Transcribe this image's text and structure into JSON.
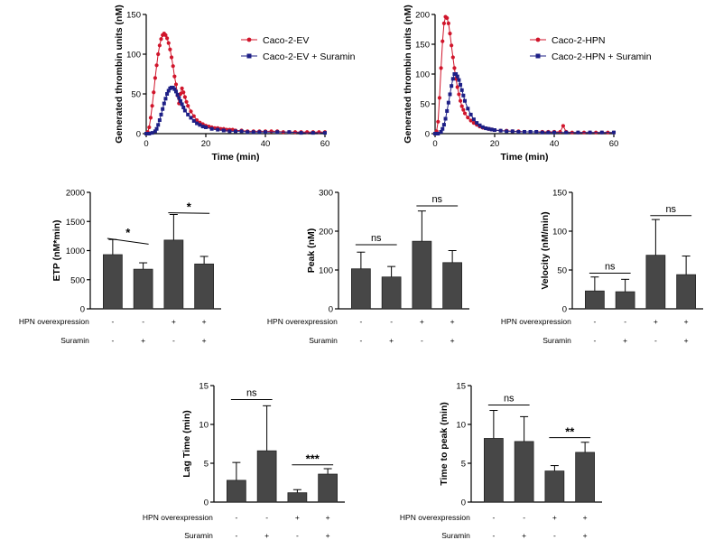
{
  "colors": {
    "red": "#d0152b",
    "navy": "#1d1f86",
    "bar": "#474747",
    "axis": "#000000"
  },
  "chart_data": [
    {
      "type": "line",
      "id": "tg1",
      "ylabel": "Generated thrombin units (nM)",
      "xlabel": "Time (min)",
      "xlim": [
        0,
        60
      ],
      "ylim": [
        0,
        150
      ],
      "xticks": [
        0,
        20,
        40,
        60
      ],
      "yticks": [
        0,
        50,
        100,
        150
      ],
      "legend_position": "top-right",
      "series": [
        {
          "name": "Caco-2-EV",
          "color": "#d0152b",
          "marker": "circle",
          "x": [
            0,
            0.5,
            1,
            1.5,
            2,
            2.5,
            3,
            3.5,
            4,
            4.5,
            5,
            5.5,
            6,
            6.5,
            7,
            7.5,
            8,
            8.5,
            9,
            9.5,
            10,
            10.5,
            11,
            11.5,
            12,
            12.5,
            13,
            13.5,
            14,
            15,
            16,
            17,
            18,
            19,
            20,
            21,
            22,
            23,
            24,
            25,
            26,
            27,
            28,
            29,
            30,
            32,
            34,
            36,
            38,
            40,
            42,
            44,
            46,
            48,
            50,
            52,
            54,
            56,
            58,
            60
          ],
          "y": [
            0,
            2,
            8,
            20,
            35,
            52,
            70,
            86,
            100,
            111,
            119,
            124,
            126,
            124,
            120,
            114,
            106,
            96,
            85,
            72,
            62,
            48,
            38,
            50,
            57,
            52,
            46,
            40,
            35,
            28,
            22,
            17,
            14,
            12,
            10,
            9,
            8,
            7,
            7,
            6,
            6,
            5,
            5,
            5,
            4,
            4,
            3,
            3,
            3,
            3,
            3,
            3,
            2,
            2,
            2,
            2,
            2,
            2,
            2,
            2
          ]
        },
        {
          "name": "Caco-2-EV + Suramin",
          "color": "#1d1f86",
          "marker": "square",
          "x": [
            0,
            1,
            2,
            3,
            3.5,
            4,
            4.5,
            5,
            5.5,
            6,
            6.5,
            7,
            7.5,
            8,
            8.5,
            9,
            9.5,
            10,
            10.5,
            11,
            11.5,
            12,
            12.5,
            13,
            14,
            15,
            16,
            17,
            18,
            19,
            20,
            22,
            24,
            26,
            28,
            30,
            32,
            34,
            36,
            38,
            40,
            44,
            48,
            52,
            56,
            60
          ],
          "y": [
            0,
            0,
            1,
            3,
            6,
            11,
            17,
            24,
            31,
            38,
            44,
            50,
            54,
            57,
            58,
            58,
            56,
            53,
            49,
            45,
            41,
            37,
            33,
            29,
            24,
            20,
            16,
            13,
            11,
            9,
            8,
            6,
            5,
            4,
            3,
            3,
            3,
            2,
            2,
            2,
            2,
            2,
            2,
            1,
            1,
            1
          ]
        }
      ]
    },
    {
      "type": "line",
      "id": "tg2",
      "ylabel": "Generated thrombin units (nM)",
      "xlabel": "Time (min)",
      "xlim": [
        0,
        60
      ],
      "ylim": [
        0,
        200
      ],
      "xticks": [
        0,
        20,
        40,
        60
      ],
      "yticks": [
        0,
        50,
        100,
        150,
        200
      ],
      "legend_position": "top-right",
      "series": [
        {
          "name": "Caco-2-HPN",
          "color": "#d0152b",
          "marker": "circle",
          "x": [
            0,
            0.5,
            1,
            1.5,
            2,
            2.5,
            3,
            3.5,
            4,
            4.5,
            5,
            5.5,
            6,
            6.5,
            7,
            7.5,
            8,
            8.5,
            9,
            9.5,
            10,
            11,
            12,
            13,
            14,
            15,
            16,
            17,
            18,
            19,
            20,
            22,
            24,
            26,
            28,
            30,
            32,
            34,
            36,
            38,
            40,
            42,
            43,
            44,
            46,
            48,
            50,
            52,
            54,
            56,
            58,
            60
          ],
          "y": [
            0,
            4,
            20,
            60,
            110,
            155,
            185,
            196,
            194,
            185,
            168,
            148,
            128,
            110,
            92,
            78,
            66,
            55,
            46,
            40,
            34,
            27,
            22,
            18,
            15,
            12,
            10,
            9,
            8,
            7,
            6,
            5,
            5,
            4,
            4,
            3,
            3,
            3,
            3,
            3,
            3,
            3,
            13,
            3,
            2,
            2,
            2,
            2,
            2,
            2,
            2,
            2
          ]
        },
        {
          "name": "Caco-2-HPN + Suramin",
          "color": "#1d1f86",
          "marker": "square",
          "x": [
            0,
            1,
            2,
            2.5,
            3,
            3.5,
            4,
            4.5,
            5,
            5.5,
            6,
            6.5,
            7,
            7.5,
            8,
            8.5,
            9,
            9.5,
            10,
            11,
            12,
            13,
            14,
            15,
            16,
            17,
            18,
            19,
            20,
            22,
            24,
            26,
            28,
            30,
            32,
            34,
            36,
            38,
            40,
            44,
            48,
            52,
            56,
            60
          ],
          "y": [
            0,
            0,
            3,
            8,
            15,
            25,
            38,
            52,
            66,
            80,
            92,
            100,
            100,
            96,
            90,
            82,
            73,
            64,
            55,
            42,
            32,
            24,
            18,
            14,
            11,
            9,
            8,
            7,
            6,
            5,
            4,
            4,
            3,
            3,
            3,
            3,
            2,
            2,
            2,
            2,
            2,
            2,
            2,
            2
          ]
        }
      ]
    },
    {
      "type": "bar",
      "id": "etp",
      "ylabel": "ETP (nM*min)",
      "ylim": [
        0,
        2000
      ],
      "yticks": [
        0,
        500,
        1000,
        1500,
        2000
      ],
      "values": [
        930,
        680,
        1180,
        770
      ],
      "errors": [
        260,
        110,
        440,
        130
      ],
      "significance": [
        {
          "bars": [
            0,
            1
          ],
          "label": "*"
        },
        {
          "bars": [
            2,
            3
          ],
          "label": "*"
        }
      ]
    },
    {
      "type": "bar",
      "id": "peak",
      "ylabel": "Peak (nM)",
      "ylim": [
        0,
        300
      ],
      "yticks": [
        0,
        100,
        200,
        300
      ],
      "values": [
        103,
        82,
        174,
        119
      ],
      "errors": [
        43,
        27,
        78,
        31
      ],
      "significance": [
        {
          "bars": [
            0,
            1
          ],
          "label": "ns"
        },
        {
          "bars": [
            2,
            3
          ],
          "label": "ns"
        }
      ]
    },
    {
      "type": "bar",
      "id": "velocity",
      "ylabel": "Velocity (nM/min)",
      "ylim": [
        0,
        150
      ],
      "yticks": [
        0,
        50,
        100,
        150
      ],
      "values": [
        23,
        22,
        69,
        44
      ],
      "errors": [
        18,
        16,
        46,
        24
      ],
      "significance": [
        {
          "bars": [
            0,
            1
          ],
          "label": "ns"
        },
        {
          "bars": [
            2,
            3
          ],
          "label": "ns"
        }
      ]
    },
    {
      "type": "bar",
      "id": "lagtime",
      "ylabel": "Lag Time (min)",
      "ylim": [
        0,
        15
      ],
      "yticks": [
        0,
        5,
        10,
        15
      ],
      "values": [
        2.8,
        6.6,
        1.2,
        3.6
      ],
      "errors": [
        2.3,
        5.8,
        0.4,
        0.7
      ],
      "significance": [
        {
          "bars": [
            0,
            1
          ],
          "label": "ns"
        },
        {
          "bars": [
            2,
            3
          ],
          "label": "***"
        }
      ]
    },
    {
      "type": "bar",
      "id": "ttp",
      "ylabel": "Time to peak (min)",
      "ylim": [
        0,
        15
      ],
      "yticks": [
        0,
        5,
        10,
        15
      ],
      "values": [
        8.2,
        7.8,
        4.0,
        6.4
      ],
      "errors": [
        3.6,
        3.2,
        0.7,
        1.3
      ],
      "significance": [
        {
          "bars": [
            0,
            1
          ],
          "label": "ns"
        },
        {
          "bars": [
            2,
            3
          ],
          "label": "**"
        }
      ]
    }
  ],
  "factors": {
    "hpn_label": "HPN overexpression",
    "suramin_label": "Suramin",
    "hpn_signs": [
      "-",
      "-",
      "+",
      "+"
    ],
    "suramin_signs": [
      "-",
      "+",
      "-",
      "+"
    ]
  }
}
